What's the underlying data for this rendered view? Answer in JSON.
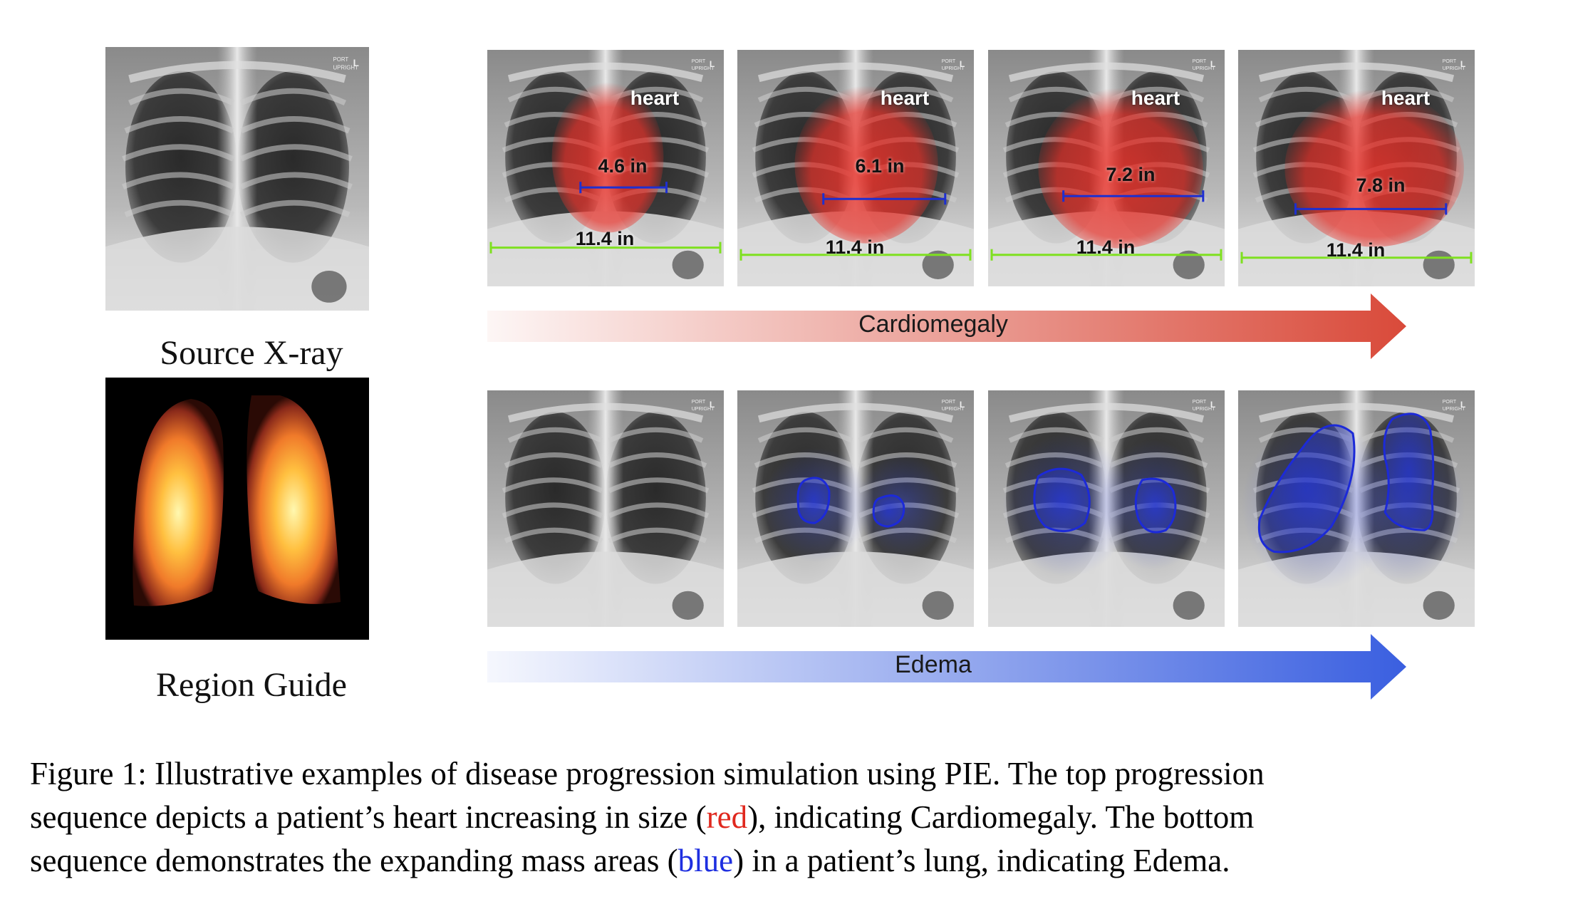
{
  "left_panel": {
    "source_caption": "Source X-ray",
    "region_caption": "Region Guide"
  },
  "cardiomegaly": {
    "arrow_label": "Cardiomegaly",
    "arrow_color": "#d94a3a",
    "heart_color": "#e8322a",
    "frames": [
      {
        "heart_label": "heart",
        "heart_width": "4.6 in",
        "chest_width": "11.4 in"
      },
      {
        "heart_label": "heart",
        "heart_width": "6.1 in",
        "chest_width": "11.4 in"
      },
      {
        "heart_label": "heart",
        "heart_width": "7.2 in",
        "chest_width": "11.4 in"
      },
      {
        "heart_label": "heart",
        "heart_width": "7.8 in",
        "chest_width": "11.4 in"
      }
    ]
  },
  "edema": {
    "arrow_label": "Edema",
    "arrow_color": "#3a5fe0",
    "mass_color": "#1c2ad8"
  },
  "caption": {
    "line1": "Figure 1: Illustrative examples of disease progression simulation using PIE. The top progression",
    "line2_a": "sequence depicts a patient’s heart increasing in size (",
    "line2_red": "red",
    "line2_b": "), indicating Cardiomegaly.  The bottom",
    "line3_a": "sequence demonstrates the expanding mass areas (",
    "line3_blue": "blue",
    "line3_b": ") in a patient’s lung, indicating Edema."
  }
}
